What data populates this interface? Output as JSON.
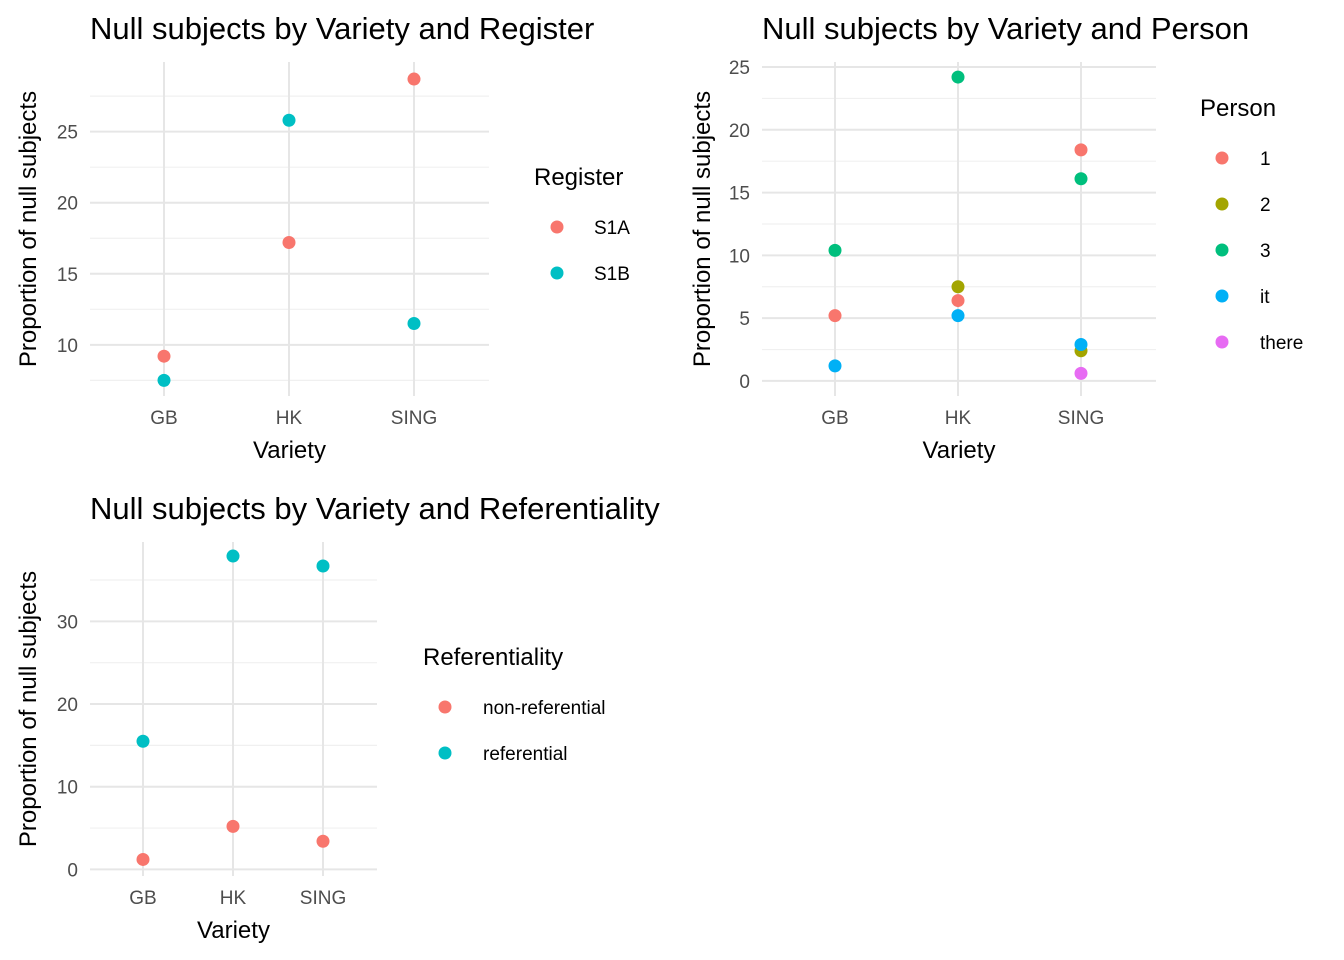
{
  "chart_data": [
    {
      "type": "scatter",
      "title": "Null subjects by Variety and Register",
      "xlabel": "Variety",
      "ylabel": "Proportion of null subjects",
      "categories": [
        "GB",
        "HK",
        "SING"
      ],
      "yticks": [
        10,
        15,
        20,
        25
      ],
      "ylim": [
        6.4,
        29.9
      ],
      "grid": true,
      "legend": {
        "title": "Register",
        "placement": "right"
      },
      "series": [
        {
          "name": "S1A",
          "color": "#F8766D",
          "values": [
            9.2,
            17.2,
            28.7
          ]
        },
        {
          "name": "S1B",
          "color": "#00BFC4",
          "values": [
            7.5,
            25.8,
            11.5
          ]
        }
      ]
    },
    {
      "type": "scatter",
      "title": "Null subjects by Variety and Person",
      "xlabel": "Variety",
      "ylabel": "Proportion of null subjects",
      "categories": [
        "GB",
        "HK",
        "SING"
      ],
      "yticks": [
        0,
        5,
        10,
        15,
        20,
        25
      ],
      "ylim": [
        -1.2,
        25.4
      ],
      "grid": true,
      "legend": {
        "title": "Person",
        "placement": "right"
      },
      "series": [
        {
          "name": "1",
          "color": "#F8766D",
          "values": [
            5.2,
            6.4,
            18.4
          ]
        },
        {
          "name": "2",
          "color": "#A3A500",
          "values": [
            null,
            7.5,
            2.4
          ]
        },
        {
          "name": "3",
          "color": "#00BF7D",
          "values": [
            10.4,
            24.2,
            16.1
          ]
        },
        {
          "name": "it",
          "color": "#00B0F6",
          "values": [
            1.2,
            5.2,
            2.9
          ]
        },
        {
          "name": "there",
          "color": "#E76BF3",
          "values": [
            null,
            null,
            0.6
          ]
        }
      ]
    },
    {
      "type": "scatter",
      "title": "Null subjects by Variety and Referentiality",
      "xlabel": "Variety",
      "ylabel": "Proportion of null subjects",
      "categories": [
        "GB",
        "HK",
        "SING"
      ],
      "yticks": [
        0,
        10,
        20,
        30
      ],
      "ylim": [
        -0.8,
        39.6
      ],
      "grid": true,
      "legend": {
        "title": "Referentiality",
        "placement": "right"
      },
      "series": [
        {
          "name": "non-referential",
          "color": "#F8766D",
          "values": [
            1.2,
            5.2,
            3.4
          ]
        },
        {
          "name": "referential",
          "color": "#00BFC4",
          "values": [
            15.5,
            37.9,
            36.7
          ]
        }
      ]
    }
  ]
}
